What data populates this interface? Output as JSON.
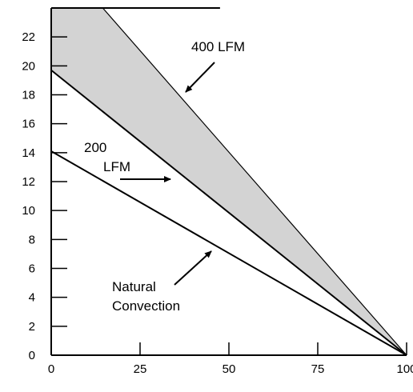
{
  "chart_data": {
    "type": "line",
    "title": "",
    "xlabel": "",
    "ylabel": "",
    "xlim": [
      0,
      100
    ],
    "ylim": [
      0,
      24
    ],
    "x_ticks": [
      0,
      25,
      50,
      75,
      100
    ],
    "y_ticks": [
      0,
      2,
      4,
      6,
      8,
      10,
      12,
      14,
      16,
      18,
      20,
      22
    ],
    "grid": false,
    "legend": "none",
    "series": [
      {
        "name": "Natural Convection",
        "x": [
          0,
          100
        ],
        "y": [
          14.1,
          0
        ]
      },
      {
        "name": "200 LFM",
        "x": [
          0,
          100
        ],
        "y": [
          19.7,
          0
        ]
      },
      {
        "name": "400 LFM",
        "x": [
          0,
          14.5,
          100
        ],
        "y": [
          24,
          24,
          0
        ]
      }
    ],
    "top_line": {
      "x": [
        0,
        47.5
      ],
      "y": [
        24,
        24
      ]
    },
    "shaded_region": {
      "between": [
        "200 LFM",
        "400 LFM"
      ],
      "color": "#d3d3d3"
    },
    "annotations": [
      {
        "id": "lfm400",
        "lines": [
          "400 LFM"
        ]
      },
      {
        "id": "lfm200",
        "lines": [
          "200",
          "LFM"
        ]
      },
      {
        "id": "natural",
        "lines": [
          "Natural",
          "Convection"
        ]
      }
    ]
  }
}
